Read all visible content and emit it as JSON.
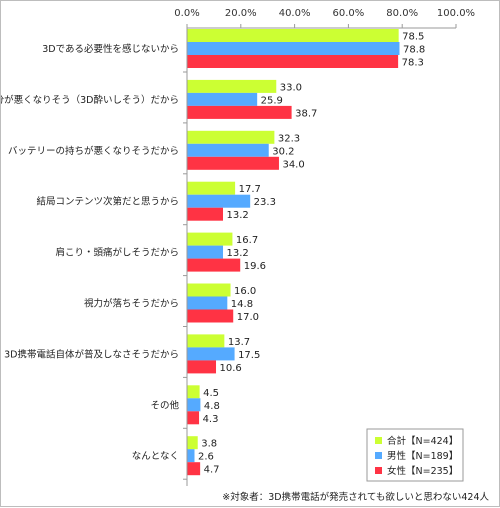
{
  "chart_data": {
    "type": "bar",
    "orientation": "horizontal",
    "xlim": [
      0,
      100
    ],
    "ticks": [
      "0.0%",
      "20.0%",
      "40.0%",
      "60.0%",
      "80.0%",
      "100.0%"
    ],
    "tick_values": [
      0,
      20,
      40,
      60,
      80,
      100
    ],
    "categories": [
      "3Dである必要性を感じないから",
      "気分が悪くなりそう（3D酔いしそう）だから",
      "バッテリーの持ちが悪くなりそうだから",
      "結局コンテンツ次第だと思うから",
      "肩こり・頭痛がしそうだから",
      "視力が落ちそうだから",
      "3D携帯電話自体が普及しなさそうだから",
      "その他",
      "なんとなく"
    ],
    "series": [
      {
        "name": "合計【N=424】",
        "color": "#ccff33",
        "values": [
          78.5,
          33.0,
          32.3,
          17.7,
          16.7,
          16.0,
          13.7,
          4.5,
          3.8
        ],
        "labels": [
          "78.5",
          "33.0",
          "32.3",
          "17.7",
          "16.7",
          "16.0",
          "13.7",
          "4.5",
          "3.8"
        ]
      },
      {
        "name": "男性【N=189】",
        "color": "#55aaff",
        "values": [
          78.8,
          25.9,
          30.2,
          23.3,
          13.2,
          14.8,
          17.5,
          4.8,
          2.6
        ],
        "labels": [
          "78.8",
          "25.9",
          "30.2",
          "23.3",
          "13.2",
          "14.8",
          "17.5",
          "4.8",
          "2.6"
        ]
      },
      {
        "name": "女性【N=235】",
        "color": "#ff3344",
        "values": [
          78.3,
          38.7,
          34.0,
          13.2,
          19.6,
          17.0,
          10.6,
          4.3,
          4.7
        ],
        "labels": [
          "78.3",
          "38.7",
          "34.0",
          "13.2",
          "19.6",
          "17.0",
          "10.6",
          "4.3",
          "4.7"
        ]
      }
    ],
    "legend_position": "bottom-right",
    "grid": false
  },
  "footnote": "※対象者：3D携帯電話が発売されても欲しいと思わない424人"
}
